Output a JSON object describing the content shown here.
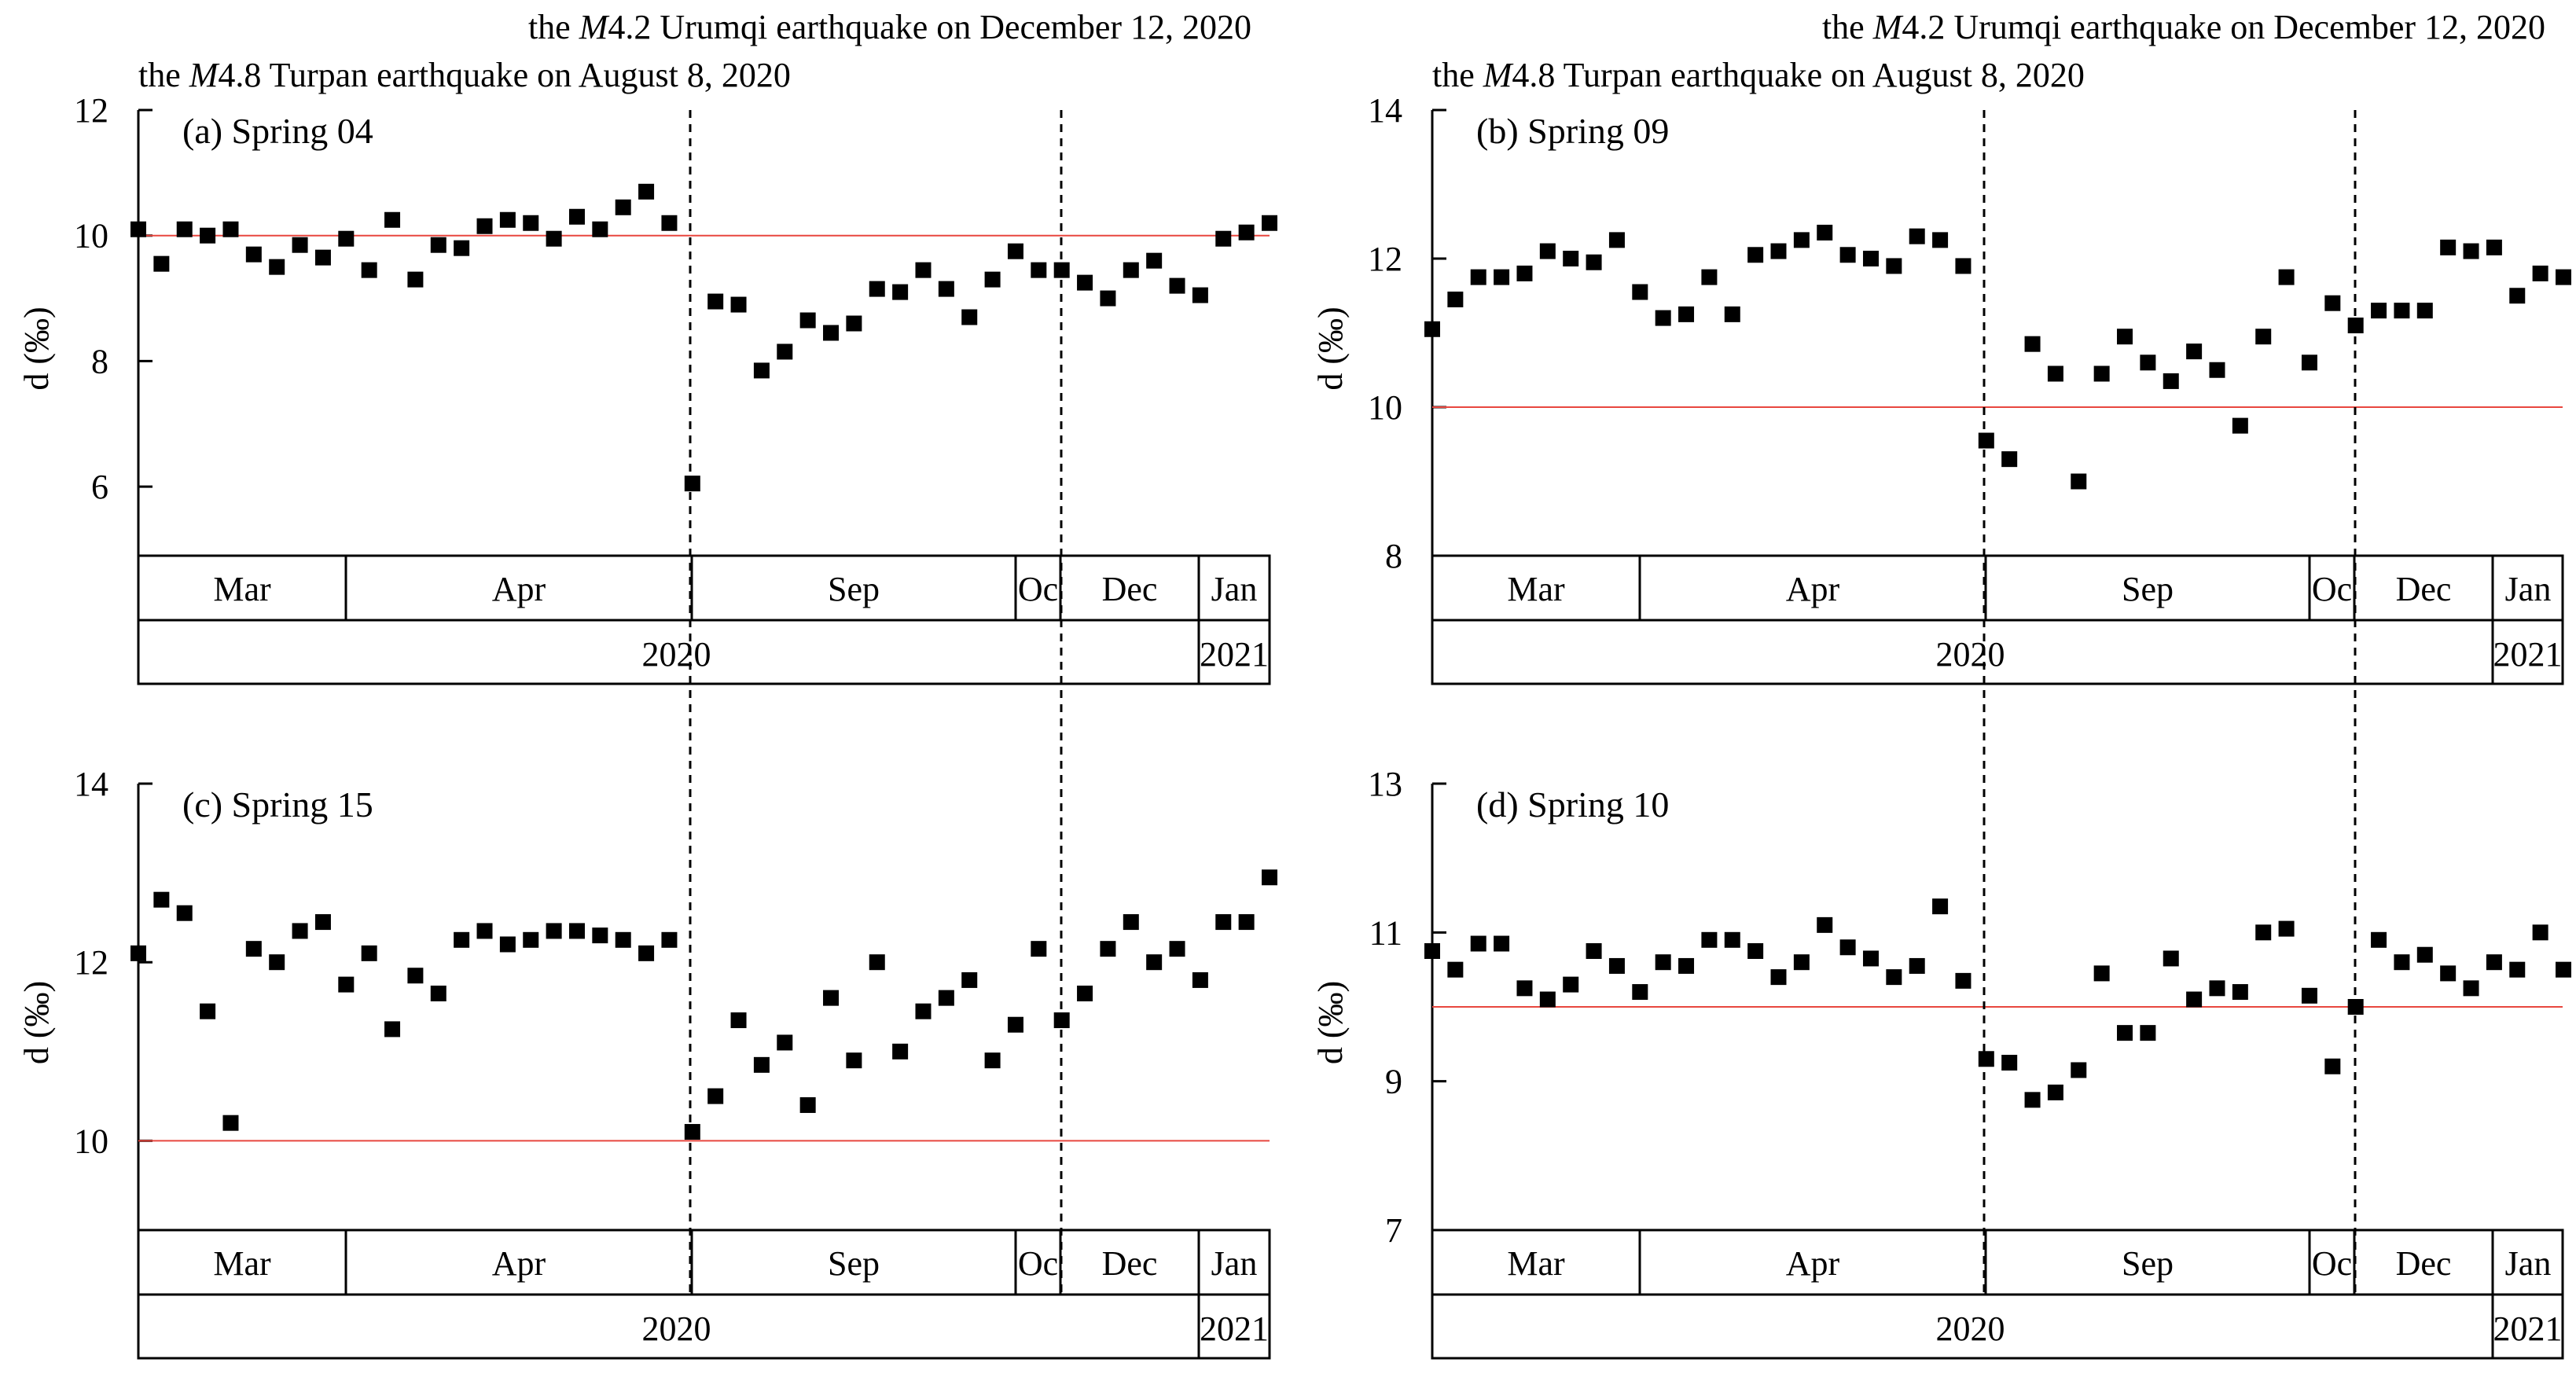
{
  "chart_data": {
    "events": [
      {
        "name": "turpan",
        "prefix": "the ",
        "magnitude_letter": "M",
        "rest": "4.8 Turpan earthquake on August 8, 2020"
      },
      {
        "name": "urumqi",
        "prefix": "the ",
        "magnitude_letter": "M",
        "rest": "4.2 Urumqi earthquake on December 12, 2020"
      }
    ],
    "months": [
      "Mar",
      "Apr",
      "Sep",
      "Oc",
      "Dec",
      "Jan"
    ],
    "years": [
      "2020",
      "2021"
    ],
    "colors": {
      "reference_line": "#e8473f",
      "marker": "#000000"
    },
    "panels": [
      {
        "id": "a",
        "label": "(a) Spring 04",
        "type": "scatter",
        "ylabel": "d (‰)",
        "ylim": [
          4.9,
          12
        ],
        "yticks": [
          6,
          8,
          10,
          12
        ],
        "reference": 10,
        "event_indices": [
          48,
          64
        ],
        "values": [
          10.1,
          9.55,
          10.1,
          10.0,
          10.1,
          9.7,
          9.5,
          9.85,
          9.65,
          9.95,
          9.45,
          10.25,
          9.3,
          9.85,
          9.8,
          10.15,
          10.25,
          10.2,
          9.95,
          10.3,
          10.1,
          10.45,
          10.7,
          10.2,
          6.05,
          8.95,
          8.9,
          7.85,
          8.15,
          8.65,
          8.45,
          8.6,
          9.15,
          9.1,
          9.45,
          9.15,
          8.7,
          9.3,
          9.75,
          9.45,
          9.45,
          9.25,
          9.0,
          9.45,
          9.6,
          9.2,
          9.05,
          9.95,
          10.05,
          10.2
        ]
      },
      {
        "id": "b",
        "label": "(b) Spring 09",
        "type": "scatter",
        "ylabel": "d (‰)",
        "ylim": [
          8,
          14
        ],
        "yticks": [
          8,
          10,
          12,
          14
        ],
        "reference": 10,
        "event_indices": [
          48,
          64
        ],
        "values": [
          11.05,
          11.45,
          11.75,
          11.75,
          11.8,
          12.1,
          12.0,
          11.95,
          12.25,
          11.55,
          11.2,
          11.25,
          11.75,
          11.25,
          12.05,
          12.1,
          12.25,
          12.35,
          12.05,
          12.0,
          11.9,
          12.3,
          12.25,
          11.9,
          9.55,
          9.3,
          10.85,
          10.45,
          9.0,
          10.45,
          10.95,
          10.6,
          10.35,
          10.75,
          10.5,
          9.75,
          10.95,
          11.75,
          10.6,
          11.4,
          11.1,
          11.3,
          11.3,
          11.3,
          12.15,
          12.1,
          12.15,
          11.5,
          11.8,
          11.75
        ]
      },
      {
        "id": "c",
        "label": "(c) Spring 15",
        "type": "scatter",
        "ylabel": "d (‰)",
        "ylim": [
          9,
          14
        ],
        "yticks": [
          10,
          12,
          14
        ],
        "reference": 10,
        "event_indices": [
          48,
          64
        ],
        "values": [
          12.1,
          12.7,
          12.55,
          11.45,
          10.2,
          12.15,
          12.0,
          12.35,
          12.45,
          11.75,
          12.1,
          11.25,
          11.85,
          11.65,
          12.25,
          12.35,
          12.2,
          12.25,
          12.35,
          12.35,
          12.3,
          12.25,
          12.1,
          12.25,
          10.1,
          10.5,
          11.35,
          10.85,
          11.1,
          10.4,
          11.6,
          10.9,
          12.0,
          11.0,
          11.45,
          11.6,
          11.8,
          10.9,
          11.3,
          12.15,
          11.35,
          11.65,
          12.15,
          12.45,
          12.0,
          12.15,
          11.8,
          12.45,
          12.45,
          12.95
        ]
      },
      {
        "id": "d",
        "label": "(d) Spring 10",
        "type": "scatter",
        "ylabel": "d (‰)",
        "ylim": [
          7,
          13
        ],
        "yticks": [
          7,
          9,
          11,
          13
        ],
        "reference": 10,
        "event_indices": [
          48,
          64
        ],
        "values": [
          10.75,
          10.5,
          10.85,
          10.85,
          10.25,
          10.1,
          10.3,
          10.75,
          10.55,
          10.2,
          10.6,
          10.55,
          10.9,
          10.9,
          10.75,
          10.4,
          10.6,
          11.1,
          10.8,
          10.65,
          10.4,
          10.55,
          11.35,
          10.35,
          9.3,
          9.25,
          8.75,
          8.85,
          9.15,
          10.45,
          9.65,
          9.65,
          10.65,
          10.1,
          10.25,
          10.2,
          11.0,
          11.05,
          10.15,
          9.2,
          10.0,
          10.9,
          10.6,
          10.7,
          10.45,
          10.25,
          10.6,
          10.5,
          11.0,
          10.5
        ]
      }
    ]
  }
}
